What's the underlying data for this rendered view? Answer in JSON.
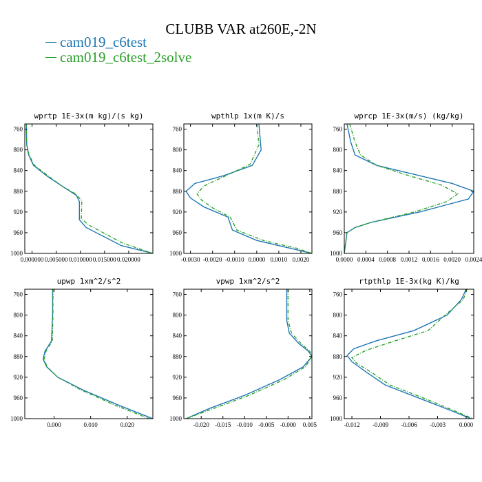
{
  "title": "CLUBB VAR at260E,-2N",
  "legend": [
    {
      "label": "cam019_c6test",
      "color": "#1f77b4"
    },
    {
      "label": "cam019_c6test_2solve",
      "color": "#2ca02c"
    }
  ],
  "chart_data": [
    {
      "type": "line",
      "title": "wprtp  1E-3x(m kg)/(s kg)",
      "ylim": [
        1000,
        750
      ],
      "y_ticks": [
        760,
        800,
        840,
        880,
        920,
        960,
        1000
      ],
      "xlim": [
        -0.0015,
        0.025
      ],
      "x_ticks": [
        0.0,
        0.005,
        0.01,
        0.015,
        0.02
      ],
      "x_tick_labels": [
        "0.000000",
        "0.005000",
        "0.010000",
        "0.015000",
        "0.020000"
      ],
      "series": [
        {
          "name": "cam019_c6test",
          "color": "#1f77b4",
          "dash": false,
          "points": [
            [
              -0.0012,
              750
            ],
            [
              -0.0011,
              790
            ],
            [
              -0.0007,
              810
            ],
            [
              0.0003,
              830
            ],
            [
              0.003,
              850
            ],
            [
              0.0062,
              870
            ],
            [
              0.0092,
              888
            ],
            [
              0.0098,
              900
            ],
            [
              0.0098,
              935
            ],
            [
              0.0112,
              950
            ],
            [
              0.0185,
              985
            ],
            [
              0.025,
              1000
            ]
          ]
        },
        {
          "name": "cam019_c6test_2solve",
          "color": "#2ca02c",
          "dash": true,
          "points": [
            [
              -0.0012,
              750
            ],
            [
              -0.0011,
              790
            ],
            [
              -0.0006,
              810
            ],
            [
              0.0005,
              830
            ],
            [
              0.0033,
              850
            ],
            [
              0.0062,
              870
            ],
            [
              0.009,
              885
            ],
            [
              0.0103,
              898
            ],
            [
              0.0102,
              933
            ],
            [
              0.0117,
              945
            ],
            [
              0.0187,
              980
            ],
            [
              0.025,
              1000
            ]
          ]
        }
      ]
    },
    {
      "type": "line",
      "title": "wpthlp  1x(m K)/s",
      "ylim": [
        1000,
        750
      ],
      "y_ticks": [
        760,
        800,
        840,
        880,
        920,
        960,
        1000
      ],
      "xlim": [
        -0.0033,
        0.0025
      ],
      "x_ticks": [
        -0.003,
        -0.002,
        -0.001,
        0.0,
        0.001,
        0.002
      ],
      "x_tick_labels": [
        "-0.0030",
        "-0.0020",
        "-0.0010",
        "0.0000",
        "0.0010",
        "0.0020"
      ],
      "series": [
        {
          "name": "cam019_c6test",
          "color": "#1f77b4",
          "dash": false,
          "points": [
            [
              0.0001,
              750
            ],
            [
              0.0002,
              800
            ],
            [
              -0.0002,
              830
            ],
            [
              -0.0015,
              850
            ],
            [
              -0.0028,
              865
            ],
            [
              -0.0032,
              880
            ],
            [
              -0.003,
              893
            ],
            [
              -0.0024,
              910
            ],
            [
              -0.0013,
              930
            ],
            [
              -0.0011,
              955
            ],
            [
              0.0,
              975
            ],
            [
              0.0015,
              990
            ],
            [
              0.0025,
              1000
            ]
          ]
        },
        {
          "name": "cam019_c6test_2solve",
          "color": "#2ca02c",
          "dash": true,
          "points": [
            [
              0.0,
              750
            ],
            [
              0.0001,
              790
            ],
            [
              -0.0003,
              828
            ],
            [
              -0.0014,
              850
            ],
            [
              -0.0024,
              870
            ],
            [
              -0.0027,
              885
            ],
            [
              -0.0025,
              897
            ],
            [
              -0.002,
              912
            ],
            [
              -0.0012,
              930
            ],
            [
              -0.0009,
              955
            ],
            [
              0.0003,
              975
            ],
            [
              0.0018,
              990
            ],
            [
              0.0025,
              1000
            ]
          ]
        }
      ]
    },
    {
      "type": "line",
      "title": "wprcp  1E-3x(m/s) (kg/kg)",
      "ylim": [
        1000,
        750
      ],
      "y_ticks": [
        760,
        800,
        840,
        880,
        920,
        960,
        1000
      ],
      "xlim": [
        0.0,
        0.0024
      ],
      "x_ticks": [
        0.0,
        0.0004,
        0.0008,
        0.0012,
        0.0016,
        0.002,
        0.0024
      ],
      "x_tick_labels": [
        "0.0000",
        "0.0004",
        "0.0008",
        "0.0012",
        "0.0016",
        "0.0020",
        "0.0024"
      ],
      "series": [
        {
          "name": "cam019_c6test",
          "color": "#1f77b4",
          "dash": false,
          "points": [
            [
              5e-05,
              750
            ],
            [
              0.00012,
              785
            ],
            [
              0.0002,
              810
            ],
            [
              0.0006,
              830
            ],
            [
              0.0014,
              850
            ],
            [
              0.002,
              865
            ],
            [
              0.0024,
              880
            ],
            [
              0.0023,
              895
            ],
            [
              0.0014,
              920
            ],
            [
              0.0005,
              940
            ],
            [
              0.0002,
              950
            ],
            [
              5e-05,
              960
            ],
            [
              0.0,
              1000
            ]
          ]
        },
        {
          "name": "cam019_c6test_2solve",
          "color": "#2ca02c",
          "dash": true,
          "points": [
            [
              0.0001,
              750
            ],
            [
              0.0002,
              785
            ],
            [
              0.0003,
              810
            ],
            [
              0.0006,
              830
            ],
            [
              0.0012,
              850
            ],
            [
              0.0018,
              868
            ],
            [
              0.0021,
              885
            ],
            [
              0.0019,
              900
            ],
            [
              0.0013,
              920
            ],
            [
              0.0005,
              940
            ],
            [
              0.0002,
              950
            ],
            [
              5e-05,
              960
            ],
            [
              0.0,
              1000
            ]
          ]
        }
      ]
    },
    {
      "type": "line",
      "title": "upwp  1xm^2/s^2",
      "ylim": [
        1000,
        750
      ],
      "y_ticks": [
        760,
        800,
        840,
        880,
        920,
        960,
        1000
      ],
      "xlim": [
        -0.008,
        0.027
      ],
      "x_ticks": [
        0.0,
        0.01,
        0.02
      ],
      "x_tick_labels": [
        "0.000",
        "0.010",
        "0.020"
      ],
      "series": [
        {
          "name": "cam019_c6test",
          "color": "#1f77b4",
          "dash": false,
          "points": [
            [
              -0.0004,
              750
            ],
            [
              -0.0004,
              800
            ],
            [
              -0.0007,
              850
            ],
            [
              -0.0025,
              870
            ],
            [
              -0.003,
              885
            ],
            [
              -0.002,
              900
            ],
            [
              0.001,
              920
            ],
            [
              0.008,
              945
            ],
            [
              0.018,
              975
            ],
            [
              0.027,
              1000
            ]
          ]
        },
        {
          "name": "cam019_c6test_2solve",
          "color": "#2ca02c",
          "dash": true,
          "points": [
            [
              -0.0003,
              750
            ],
            [
              -0.0003,
              800
            ],
            [
              -0.0005,
              850
            ],
            [
              -0.0022,
              870
            ],
            [
              -0.0027,
              885
            ],
            [
              -0.0019,
              900
            ],
            [
              0.001,
              920
            ],
            [
              0.0075,
              945
            ],
            [
              0.017,
              975
            ],
            [
              0.026,
              1000
            ]
          ]
        }
      ]
    },
    {
      "type": "line",
      "title": "vpwp  1xm^2/s^2",
      "ylim": [
        1000,
        750
      ],
      "y_ticks": [
        760,
        800,
        840,
        880,
        920,
        960,
        1000
      ],
      "xlim": [
        -0.024,
        0.0055
      ],
      "x_ticks": [
        -0.02,
        -0.015,
        -0.01,
        -0.005,
        0.0,
        0.005
      ],
      "x_tick_labels": [
        "-0.020",
        "-0.015",
        "-0.010",
        "-0.005",
        "-0.000",
        "0.005"
      ],
      "series": [
        {
          "name": "cam019_c6test",
          "color": "#1f77b4",
          "dash": false,
          "points": [
            [
              -0.0003,
              750
            ],
            [
              -0.0003,
              810
            ],
            [
              0.0003,
              835
            ],
            [
              0.0025,
              855
            ],
            [
              0.0047,
              870
            ],
            [
              0.0055,
              880
            ],
            [
              0.0035,
              900
            ],
            [
              -0.002,
              925
            ],
            [
              -0.01,
              955
            ],
            [
              -0.018,
              980
            ],
            [
              -0.0235,
              1000
            ]
          ]
        },
        {
          "name": "cam019_c6test_2solve",
          "color": "#2ca02c",
          "dash": true,
          "points": [
            [
              0.0,
              750
            ],
            [
              0.0,
              810
            ],
            [
              0.0008,
              835
            ],
            [
              0.003,
              855
            ],
            [
              0.005,
              870
            ],
            [
              0.0055,
              880
            ],
            [
              0.004,
              900
            ],
            [
              -0.001,
              925
            ],
            [
              -0.009,
              955
            ],
            [
              -0.017,
              980
            ],
            [
              -0.0235,
              1000
            ]
          ]
        }
      ]
    },
    {
      "type": "line",
      "title": "rtpthlp  1E-3x(kg K)/kg",
      "ylim": [
        1000,
        750
      ],
      "y_ticks": [
        760,
        800,
        840,
        880,
        920,
        960,
        1000
      ],
      "xlim": [
        -0.0128,
        0.0008
      ],
      "x_ticks": [
        -0.012,
        -0.009,
        -0.006,
        -0.003,
        0.0
      ],
      "x_tick_labels": [
        "-0.012",
        "-0.009",
        "-0.006",
        "-0.003",
        "0.000"
      ],
      "series": [
        {
          "name": "cam019_c6test",
          "color": "#1f77b4",
          "dash": false,
          "points": [
            [
              0.0,
              750
            ],
            [
              -0.0005,
              770
            ],
            [
              -0.002,
              800
            ],
            [
              -0.0055,
              830
            ],
            [
              -0.0095,
              850
            ],
            [
              -0.0118,
              865
            ],
            [
              -0.0125,
              878
            ],
            [
              -0.012,
              890
            ],
            [
              -0.0105,
              910
            ],
            [
              -0.0085,
              935
            ],
            [
              -0.005,
              960
            ],
            [
              -0.0015,
              985
            ],
            [
              0.0005,
              1000
            ]
          ]
        },
        {
          "name": "cam019_c6test_2solve",
          "color": "#2ca02c",
          "dash": true,
          "points": [
            [
              0.0001,
              750
            ],
            [
              -0.0003,
              770
            ],
            [
              -0.0022,
              800
            ],
            [
              -0.004,
              830
            ],
            [
              -0.0075,
              850
            ],
            [
              -0.0105,
              868
            ],
            [
              -0.012,
              882
            ],
            [
              -0.0115,
              893
            ],
            [
              -0.01,
              910
            ],
            [
              -0.008,
              935
            ],
            [
              -0.0045,
              960
            ],
            [
              -0.0012,
              985
            ],
            [
              0.0007,
              1000
            ]
          ]
        }
      ]
    }
  ]
}
